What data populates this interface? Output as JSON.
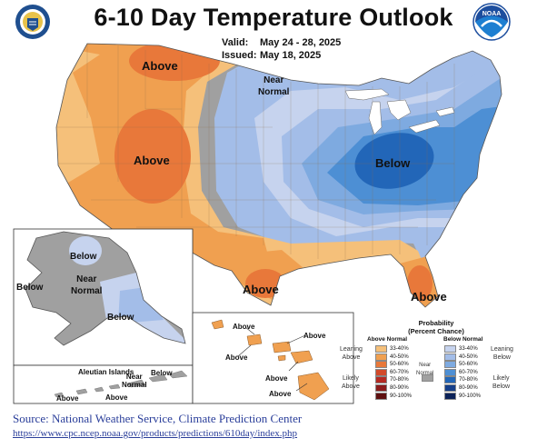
{
  "header": {
    "title": "6-10 Day Temperature Outlook",
    "valid_label": "Valid:",
    "valid_value": "May 24 - 28, 2025",
    "issued_label": "Issued:",
    "issued_value": "May 18, 2025"
  },
  "logos": {
    "left": "doc-seal-icon",
    "right": "noaa-logo-icon",
    "right_text": "NOAA"
  },
  "labels": {
    "above_north": "Above",
    "near_normal_north": "Near\nNormal",
    "above_west": "Above",
    "below_east": "Below",
    "above_texas": "Above",
    "above_florida": "Above",
    "ak_below_north": "Below",
    "ak_near_normal": "Near\nNormal",
    "ak_below_west": "Below",
    "ak_below_south": "Below",
    "aleutian_title": "Aleutian Islands",
    "aleutian_near_normal": "Near\nNormal",
    "aleutian_below_right": "Below",
    "aleutian_above_left": "Above",
    "aleutian_above_mid": "Above",
    "hi_above_1": "Above",
    "hi_above_2": "Above",
    "hi_above_3": "Above",
    "hi_above_4": "Above",
    "hi_above_5": "Above"
  },
  "legend": {
    "title": "Probability\n(Percent Chance)",
    "above_head": "Above Normal",
    "below_head": "Below Normal",
    "leaning_above": "Leaning\nAbove",
    "likely_above": "Likely\nAbove",
    "near_normal": "Near\nNormal",
    "leaning_below": "Leaning\nBelow",
    "likely_below": "Likely\nBelow",
    "ranges": [
      "33-40%",
      "40-50%",
      "50-60%",
      "60-70%",
      "70-80%",
      "80-90%",
      "90-100%"
    ],
    "above_colors": [
      "#f5c07a",
      "#f0a050",
      "#e8783a",
      "#d24a2a",
      "#b52a22",
      "#8c1c1c",
      "#5e1010"
    ],
    "below_colors": [
      "#c6d3ee",
      "#a3bde8",
      "#7eaae0",
      "#4d8fd4",
      "#2266b8",
      "#153f8a",
      "#0c2258"
    ],
    "near_color": "#a0a0a0"
  },
  "source": {
    "text": "Source: National Weather Service, Climate Prediction Center",
    "url": "https://www.cpc.ncep.noaa.gov/products/predictions/610day/index.php"
  }
}
